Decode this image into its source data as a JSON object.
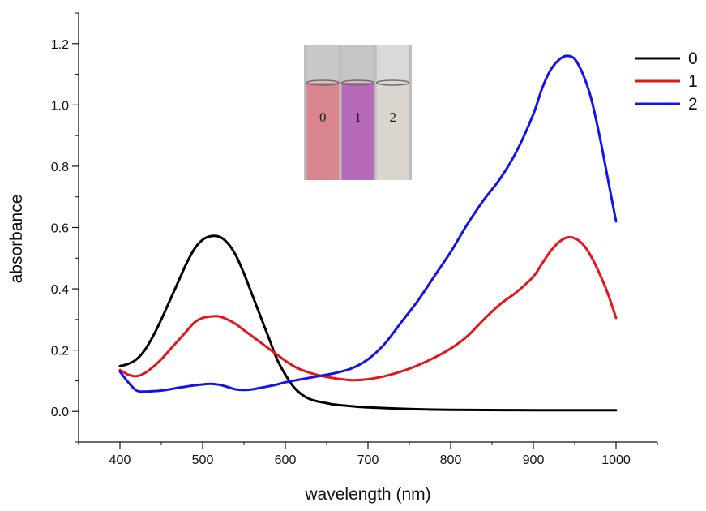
{
  "chart_data": {
    "type": "line",
    "title": "",
    "xlabel": "wavelength (nm)",
    "ylabel": "absorbance",
    "xlim": [
      350,
      1050
    ],
    "ylim": [
      -0.1,
      1.3
    ],
    "x_ticks": [
      400,
      500,
      600,
      700,
      800,
      900,
      1000
    ],
    "y_ticks": [
      0.0,
      0.2,
      0.4,
      0.6,
      0.8,
      1.0,
      1.2
    ],
    "x_tick_labels": [
      "400",
      "500",
      "600",
      "700",
      "800",
      "900",
      "1000"
    ],
    "y_tick_labels": [
      "0.0",
      "0.2",
      "0.4",
      "0.6",
      "0.8",
      "1.0",
      "1.2"
    ],
    "grid": false,
    "legend_position": "top-right",
    "series": [
      {
        "name": "0",
        "color": "#000000",
        "x": [
          400,
          410,
          420,
          430,
          440,
          450,
          460,
          470,
          480,
          490,
          500,
          510,
          520,
          530,
          540,
          550,
          560,
          570,
          580,
          590,
          600,
          610,
          620,
          630,
          640,
          650,
          660,
          680,
          700,
          750,
          800,
          900,
          1000
        ],
        "y": [
          0.148,
          0.155,
          0.17,
          0.2,
          0.245,
          0.3,
          0.36,
          0.42,
          0.48,
          0.53,
          0.56,
          0.572,
          0.57,
          0.55,
          0.51,
          0.45,
          0.38,
          0.31,
          0.24,
          0.17,
          0.12,
          0.08,
          0.055,
          0.04,
          0.032,
          0.027,
          0.022,
          0.017,
          0.013,
          0.008,
          0.005,
          0.004,
          0.004
        ]
      },
      {
        "name": "1",
        "color": "#e8141c",
        "x": [
          400,
          410,
          420,
          430,
          440,
          450,
          460,
          470,
          480,
          490,
          500,
          510,
          520,
          530,
          540,
          550,
          560,
          570,
          580,
          590,
          600,
          610,
          620,
          640,
          660,
          680,
          700,
          720,
          740,
          760,
          780,
          800,
          820,
          840,
          860,
          880,
          900,
          910,
          920,
          930,
          940,
          950,
          960,
          970,
          980,
          990,
          1000
        ],
        "y": [
          0.135,
          0.12,
          0.115,
          0.125,
          0.145,
          0.17,
          0.2,
          0.23,
          0.26,
          0.29,
          0.305,
          0.31,
          0.31,
          0.3,
          0.285,
          0.265,
          0.245,
          0.225,
          0.205,
          0.185,
          0.165,
          0.148,
          0.135,
          0.118,
          0.108,
          0.102,
          0.105,
          0.115,
          0.13,
          0.15,
          0.175,
          0.205,
          0.245,
          0.3,
          0.35,
          0.39,
          0.44,
          0.48,
          0.52,
          0.55,
          0.567,
          0.565,
          0.545,
          0.505,
          0.45,
          0.385,
          0.305
        ]
      },
      {
        "name": "2",
        "color": "#1414e8",
        "x": [
          400,
          410,
          420,
          430,
          440,
          450,
          460,
          470,
          480,
          490,
          500,
          510,
          520,
          530,
          540,
          550,
          560,
          570,
          580,
          590,
          600,
          620,
          640,
          660,
          680,
          700,
          720,
          740,
          760,
          780,
          800,
          820,
          840,
          860,
          880,
          900,
          910,
          920,
          930,
          940,
          950,
          960,
          970,
          980,
          990,
          1000
        ],
        "y": [
          0.13,
          0.095,
          0.068,
          0.065,
          0.066,
          0.068,
          0.072,
          0.077,
          0.081,
          0.085,
          0.088,
          0.09,
          0.087,
          0.08,
          0.072,
          0.07,
          0.072,
          0.077,
          0.082,
          0.088,
          0.095,
          0.105,
          0.115,
          0.125,
          0.14,
          0.17,
          0.22,
          0.29,
          0.36,
          0.44,
          0.52,
          0.61,
          0.69,
          0.76,
          0.85,
          0.97,
          1.05,
          1.11,
          1.145,
          1.16,
          1.15,
          1.1,
          1.02,
          0.9,
          0.76,
          0.62
        ]
      }
    ]
  },
  "inset": {
    "vials": [
      {
        "label": "0",
        "liquid_color": "#d9868f",
        "top_color": "#c8c8c8"
      },
      {
        "label": "1",
        "liquid_color": "#b66ab8",
        "top_color": "#c5c5c5"
      },
      {
        "label": "2",
        "liquid_color": "#dbd5d0",
        "top_color": "#d9d9d9"
      }
    ],
    "background_color": "#bdbdbd"
  }
}
